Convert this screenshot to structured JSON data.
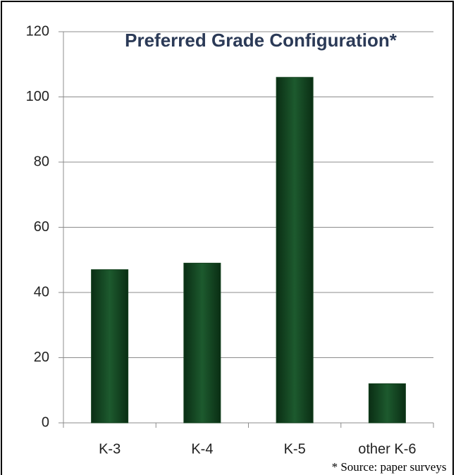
{
  "chart_data": {
    "type": "bar",
    "title": "Preferred Grade Configuration*",
    "categories": [
      "K-3",
      "K-4",
      "K-5",
      "other K-6"
    ],
    "values": [
      47,
      49,
      106,
      12
    ],
    "color": "#14421f",
    "ylim": [
      0,
      120
    ],
    "yticks": [
      0,
      20,
      40,
      60,
      80,
      100,
      120
    ],
    "grid": true,
    "annotation": "* Source: paper surveys"
  }
}
